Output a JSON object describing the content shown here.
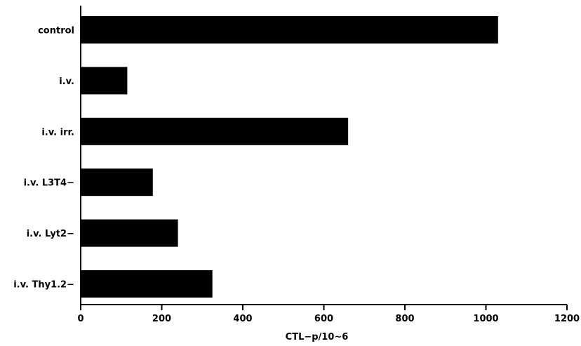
{
  "chart_data": {
    "type": "bar",
    "orientation": "horizontal",
    "categories": [
      "control",
      "i.v.",
      "i.v. irr.",
      "i.v. L3T4−",
      "i.v. Lyt2−",
      "i.v. Thy1.2−"
    ],
    "values": [
      1030,
      115,
      660,
      178,
      240,
      325
    ],
    "xlabel": "CTL−p/10~6",
    "xlim": [
      0,
      1200
    ],
    "xticks": [
      0,
      200,
      400,
      600,
      800,
      1000,
      1200
    ],
    "grid": false,
    "bar_color": "#000000"
  }
}
